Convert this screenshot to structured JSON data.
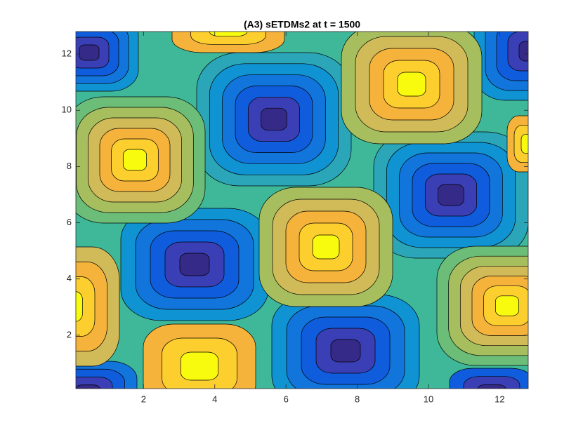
{
  "chart_data": {
    "type": "contour",
    "title": "(A3) sETDMs2 at t = 1500",
    "xlim": [
      0.1,
      12.8
    ],
    "ylim": [
      0.1,
      12.8
    ],
    "xticks": [
      2,
      4,
      6,
      8,
      10,
      12
    ],
    "yticks": [
      2,
      4,
      6,
      8,
      10,
      12
    ]
  }
}
